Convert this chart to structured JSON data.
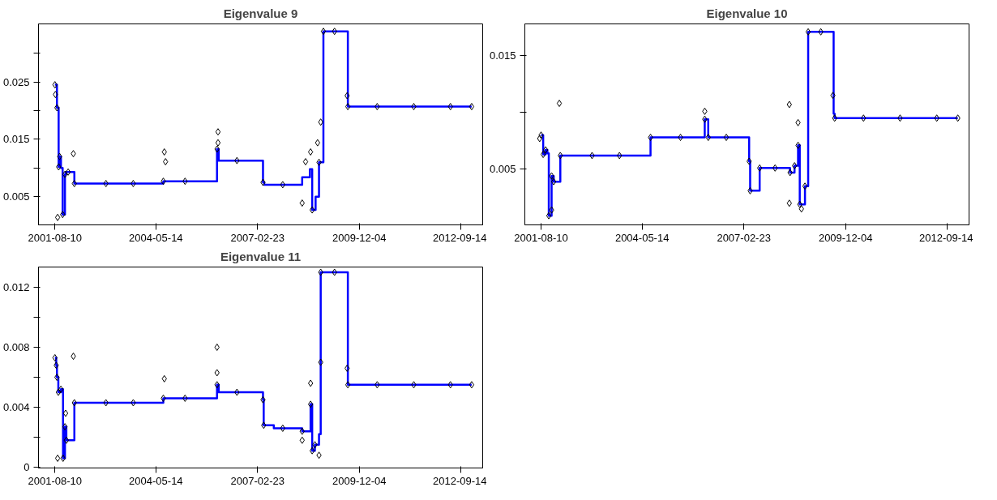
{
  "chart_data": [
    {
      "type": "step",
      "title": "Eigenvalue 9",
      "xlim": [
        "2001-02-27",
        "2013-04-19"
      ],
      "xticks": [
        "2001-08-10",
        "2004-05-14",
        "2007-02-23",
        "2009-12-04",
        "2012-09-14"
      ],
      "ylim": [
        0.0001,
        0.0351
      ],
      "yticks": [
        0.005,
        {
          "value": 0.01,
          "label": null
        },
        0.015,
        {
          "value": 0.02,
          "label": null
        },
        0.025,
        {
          "value": 0.03,
          "label": null
        }
      ],
      "series": [
        {
          "color": "#0000ff",
          "x": [
            "2001-08-10",
            "2001-08-30",
            "2001-09-16",
            "2001-09-26",
            "2001-10-09",
            "2001-10-26",
            "2001-11-18",
            "2001-11-25",
            "2002-02-20",
            "2004-07-27",
            "2006-01-14",
            "2006-01-31",
            "2007-04-18",
            "2007-04-30",
            "2008-05-13",
            "2008-07-29",
            "2008-08-21",
            "2008-09-24",
            "2008-10-28",
            "2008-12-11",
            "2009-08-12",
            "2012-12-30"
          ],
          "values": [
            0.0245,
            0.0205,
            0.0102,
            0.012,
            0.01,
            0.0019,
            0.0089,
            0.0093,
            0.0073,
            0.0077,
            0.0133,
            0.0113,
            0.0075,
            0.0071,
            0.0084,
            0.0098,
            0.0027,
            0.005,
            0.011,
            0.0338,
            0.0207,
            0.0207
          ]
        },
        {
          "type": "scatter",
          "marker": "diamond",
          "color": "#000000",
          "x": [
            "2001-08-10",
            "2001-08-15",
            "2001-08-30",
            "2001-09-06",
            "2001-09-16",
            "2001-09-26",
            "2001-10-26",
            "2001-11-18",
            "2001-12-20",
            "2002-02-10",
            "2002-02-20",
            "2003-01-01",
            "2003-10-01",
            "2004-07-27",
            "2004-08-06",
            "2004-08-18",
            "2005-03-01",
            "2006-01-14",
            "2006-01-24",
            "2006-01-24",
            "2006-08-01",
            "2007-04-18",
            "2007-11-01",
            "2008-05-13",
            "2008-06-16",
            "2008-08-05",
            "2008-08-21",
            "2008-10-14",
            "2008-10-28",
            "2008-11-14",
            "2008-12-11",
            "2009-04-01",
            "2009-08-05",
            "2009-08-12",
            "2010-06-01",
            "2011-06-01",
            "2012-06-01",
            "2012-12-30"
          ],
          "values": [
            0.0245,
            0.0228,
            0.0205,
            0.0014,
            0.0102,
            0.012,
            0.0019,
            0.0089,
            0.0093,
            0.0125,
            0.0073,
            0.0073,
            0.0073,
            0.0077,
            0.0128,
            0.0111,
            0.0077,
            0.0133,
            0.0163,
            0.0144,
            0.0113,
            0.0075,
            0.0071,
            0.0039,
            0.0111,
            0.0128,
            0.0027,
            0.0144,
            0.011,
            0.018,
            0.0338,
            0.0338,
            0.0226,
            0.0207,
            0.0207,
            0.0207,
            0.0207,
            0.0207
          ]
        }
      ]
    },
    {
      "type": "step",
      "title": "Eigenvalue 10",
      "xlim": [
        "2001-03-01",
        "2013-04-19"
      ],
      "xticks": [
        "2001-08-10",
        "2004-05-14",
        "2007-02-23",
        "2009-12-04",
        "2012-09-14"
      ],
      "ylim": [
        9e-05,
        0.0178
      ],
      "yticks": [
        0.005,
        {
          "value": 0.01,
          "label": null
        },
        0.015
      ],
      "series": [
        {
          "color": "#0000ff",
          "x": [
            "2001-08-10",
            "2001-08-31",
            "2001-09-24",
            "2001-10-12",
            "2001-10-26",
            "2001-11-23",
            "2001-12-14",
            "2002-02-18",
            "2004-08-06",
            "2006-01-29",
            "2006-03-05",
            "2007-04-17",
            "2007-04-27",
            "2007-07-31",
            "2008-05-29",
            "2008-07-13",
            "2008-08-17",
            "2008-09-03",
            "2008-10-25",
            "2008-11-26",
            "2009-08-07",
            "2009-08-17",
            "2012-12-28"
          ],
          "values": [
            0.008,
            0.0063,
            0.0067,
            0.0064,
            0.0009,
            0.0044,
            0.0039,
            0.0062,
            0.0078,
            0.0094,
            0.0078,
            0.0057,
            0.0031,
            0.0051,
            0.0047,
            0.0053,
            0.0071,
            0.0019,
            0.0035,
            0.0171,
            0.0099,
            0.0095,
            0.0095
          ]
        },
        {
          "type": "scatter",
          "marker": "diamond",
          "color": "#000000",
          "x": [
            "2001-07-27",
            "2001-08-10",
            "2001-08-31",
            "2001-09-24",
            "2001-10-26",
            "2001-11-23",
            "2001-11-23",
            "2001-12-14",
            "2002-02-08",
            "2002-02-18",
            "2003-01-01",
            "2003-10-01",
            "2004-08-06",
            "2005-06-01",
            "2006-01-29",
            "2006-01-29",
            "2006-03-05",
            "2006-09-01",
            "2007-04-17",
            "2007-04-27",
            "2007-07-31",
            "2008-01-01",
            "2008-05-22",
            "2008-05-22",
            "2008-05-29",
            "2008-07-13",
            "2008-08-17",
            "2008-08-17",
            "2008-09-03",
            "2008-09-20",
            "2008-10-25",
            "2008-11-26",
            "2009-04-01",
            "2009-07-31",
            "2009-08-17",
            "2010-06-01",
            "2011-06-01",
            "2012-06-01",
            "2012-12-28"
          ],
          "values": [
            0.0077,
            0.008,
            0.0063,
            0.0067,
            0.0009,
            0.0044,
            0.0014,
            0.0039,
            0.0108,
            0.0062,
            0.0062,
            0.0062,
            0.0078,
            0.0078,
            0.0094,
            0.0101,
            0.0078,
            0.0078,
            0.0057,
            0.0031,
            0.0051,
            0.0051,
            0.0107,
            0.002,
            0.0047,
            0.0053,
            0.0071,
            0.0091,
            0.0019,
            0.0015,
            0.0035,
            0.0171,
            0.0171,
            0.0115,
            0.0095,
            0.0095,
            0.0095,
            0.0095,
            0.0095
          ]
        }
      ]
    },
    {
      "type": "step",
      "title": "Eigenvalue 11",
      "xlim": [
        "2001-02-27",
        "2013-04-19"
      ],
      "xticks": [
        "2001-08-10",
        "2004-05-14",
        "2007-02-23",
        "2009-12-04",
        "2012-09-14"
      ],
      "ylim": [
        -5e-05,
        0.01335
      ],
      "yticks": [
        0.0,
        {
          "value": 0.002,
          "label": null
        },
        0.004,
        {
          "value": 0.006,
          "label": null
        },
        0.008,
        {
          "value": 0.01,
          "label": null
        },
        0.012
      ],
      "series": [
        {
          "color": "#0000ff",
          "x": [
            "2001-08-10",
            "2001-08-23",
            "2001-08-30",
            "2001-09-13",
            "2001-10-09",
            "2001-10-30",
            "2001-11-18",
            "2001-12-02",
            "2002-02-20",
            "2004-07-27",
            "2006-01-14",
            "2006-01-31",
            "2007-04-18",
            "2007-04-25",
            "2007-08-04",
            "2008-05-13",
            "2008-08-05",
            "2008-08-21",
            "2008-09-17",
            "2008-10-28",
            "2008-11-14",
            "2009-08-12",
            "2012-12-30"
          ],
          "values": [
            0.0073,
            0.0068,
            0.006,
            0.005,
            0.0052,
            0.0006,
            0.0027,
            0.0018,
            0.0043,
            0.0046,
            0.0055,
            0.005,
            0.0045,
            0.0028,
            0.0026,
            0.0024,
            0.0042,
            0.0011,
            0.0015,
            0.0022,
            0.013,
            0.0055,
            0.0055
          ]
        },
        {
          "type": "scatter",
          "marker": "diamond",
          "color": "#000000",
          "x": [
            "2001-08-10",
            "2001-08-23",
            "2001-08-30",
            "2001-09-06",
            "2001-09-13",
            "2001-10-09",
            "2001-10-30",
            "2001-11-25",
            "2001-11-18",
            "2001-12-02",
            "2002-02-10",
            "2002-02-20",
            "2003-01-01",
            "2003-10-01",
            "2004-07-27",
            "2004-08-06",
            "2005-03-01",
            "2006-01-14",
            "2006-01-14",
            "2006-01-14",
            "2006-08-01",
            "2007-04-18",
            "2007-04-25",
            "2007-11-01",
            "2008-05-13",
            "2008-05-13",
            "2008-08-05",
            "2008-08-05",
            "2008-08-21",
            "2008-09-17",
            "2008-10-28",
            "2008-11-14",
            "2008-11-14",
            "2009-04-01",
            "2009-08-05",
            "2009-08-12",
            "2010-06-01",
            "2011-06-01",
            "2012-06-01",
            "2012-12-30"
          ],
          "values": [
            0.0073,
            0.0068,
            0.006,
            0.0006,
            0.005,
            0.0052,
            0.0006,
            0.0036,
            0.0027,
            0.0018,
            0.0074,
            0.0043,
            0.0043,
            0.0043,
            0.0046,
            0.0059,
            0.0046,
            0.0055,
            0.008,
            0.0063,
            0.005,
            0.0045,
            0.0028,
            0.0026,
            0.0024,
            0.0018,
            0.0042,
            0.0056,
            0.0011,
            0.0015,
            0.0008,
            0.013,
            0.007,
            0.013,
            0.0066,
            0.0055,
            0.0055,
            0.0055,
            0.0055,
            0.0055
          ]
        }
      ]
    }
  ]
}
